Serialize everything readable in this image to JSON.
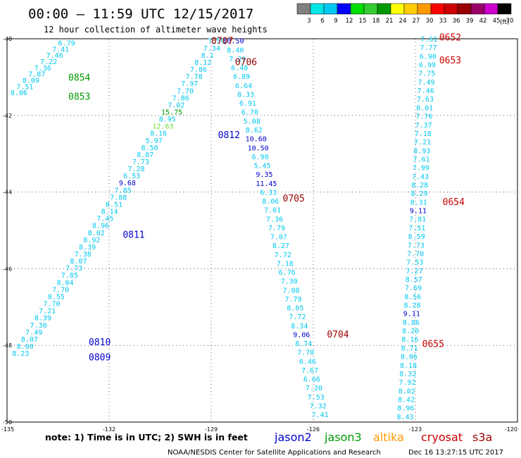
{
  "header": {
    "title": "00:00 – 11:59 UTC 12/15/2017",
    "subtitle": "12 hour collection of altimeter wave heights"
  },
  "scale": {
    "unit": "(ft)",
    "labels": [
      "3",
      "6",
      "9",
      "12",
      "15",
      "18",
      "21",
      "24",
      "27",
      "30",
      "33",
      "36",
      "39",
      "42",
      "45",
      "70"
    ],
    "colors": [
      "#808080",
      "#00e6e6",
      "#00c8f0",
      "#0000ff",
      "#00dd00",
      "#33cc33",
      "#009900",
      "#ffff00",
      "#ffcc00",
      "#ff9900",
      "#ff0000",
      "#cc0000",
      "#990000",
      "#990066",
      "#cc00cc",
      "#000000"
    ]
  },
  "axes": {
    "lon_labels": [
      "-135",
      "-132",
      "-129",
      "-126",
      "-123",
      "-120"
    ],
    "lat_labels": [
      "-40",
      "-42",
      "-44",
      "-46",
      "-48",
      "-50"
    ]
  },
  "footer": {
    "note": "note: 1) Time is in UTC; 2) SWH is in feet",
    "credit": "NOAA/NESDIS Center for Satellite Applications and Research",
    "timestamp": "Dec 16 13:27:15 UTC 2017"
  },
  "legend": [
    {
      "name": "jason2",
      "color": "#0000cc"
    },
    {
      "name": "jason3",
      "color": "#009900"
    },
    {
      "name": "altika",
      "color": "#ff9900"
    },
    {
      "name": "cryosat",
      "color": "#cc0000"
    },
    {
      "name": "s3a",
      "color": "#990000"
    }
  ],
  "pass_labels": [
    {
      "text": "0854",
      "lon": -133.2,
      "lat": -41.0,
      "color": "#009900"
    },
    {
      "text": "0853",
      "lon": -133.2,
      "lat": -41.5,
      "color": "#009900"
    },
    {
      "text": "0810",
      "lon": -132.6,
      "lat": -47.9,
      "color": "#0000cc"
    },
    {
      "text": "0809",
      "lon": -132.6,
      "lat": -48.3,
      "color": "#0000cc"
    },
    {
      "text": "0811",
      "lon": -131.6,
      "lat": -45.1,
      "color": "#0000cc"
    },
    {
      "text": "0812",
      "lon": -128.8,
      "lat": -42.5,
      "color": "#0000cc"
    },
    {
      "text": "0707",
      "lon": -129.0,
      "lat": -40.05,
      "color": "#990000"
    },
    {
      "text": "0706",
      "lon": -128.3,
      "lat": -40.6,
      "color": "#990000"
    },
    {
      "text": "0705",
      "lon": -126.9,
      "lat": -44.15,
      "color": "#990000"
    },
    {
      "text": "0704",
      "lon": -125.6,
      "lat": -47.7,
      "color": "#990000"
    },
    {
      "text": "0652",
      "lon": -122.3,
      "lat": -39.95,
      "color": "#cc0000"
    },
    {
      "text": "0653",
      "lon": -122.3,
      "lat": -40.55,
      "color": "#cc0000"
    },
    {
      "text": "0654",
      "lon": -122.2,
      "lat": -44.25,
      "color": "#cc0000"
    },
    {
      "text": "0655",
      "lon": -122.8,
      "lat": -47.95,
      "color": "#cc0000"
    }
  ],
  "tracks": [
    {
      "lon0": -133.25,
      "lat0": -40.1,
      "lon1": -134.65,
      "lat1": -41.4,
      "values": [
        "6.79",
        "7.41",
        "7.46",
        "7.22",
        "7.36",
        "7.87",
        "8.09",
        "7.51",
        "8.06"
      ]
    },
    {
      "lon0": -128.85,
      "lat0": -40.05,
      "lon1": -134.6,
      "lat1": -48.2,
      "values": [
        "7.59",
        "7.34",
        "8.1",
        "8.12",
        "7.86",
        "7.78",
        "7.97",
        "7.70",
        "7.86",
        "7.02",
        "15.75",
        "8.95",
        "12.63",
        "8.16",
        "5.97",
        "8.50",
        "8.07",
        "7.73",
        "7.28",
        "6.53",
        "9.68",
        "7.85",
        "7.88",
        "8.51",
        "8.14",
        "7.45",
        "8.96",
        "8.02",
        "8.92",
        "8.39",
        "7.38",
        "8.07",
        "7.73",
        "7.85",
        "8.04",
        "7.70",
        "8.55",
        "7.70",
        "7.21",
        "8.39",
        "7.30",
        "7.49",
        "8.07",
        "8.60",
        "8.23"
      ]
    },
    {
      "lon0": -128.35,
      "lat0": -40.05,
      "lon1": -125.8,
      "lat1": -49.8,
      "values": [
        "10.50",
        "8.40",
        "7.29",
        "6.48",
        "6.89",
        "6.64",
        "8.33",
        "6.91",
        "6.70",
        "5.08",
        "8.62",
        "10.60",
        "10.50",
        "6.90",
        "5.45",
        "9.35",
        "11.45",
        "6.33",
        "8.06",
        "7.61",
        "7.36",
        "7.79",
        "7.07",
        "8.27",
        "7.72",
        "7.18",
        "6.76",
        "7.30",
        "7.08",
        "7.79",
        "8.05",
        "7.72",
        "8.34",
        "9.06",
        "8.74",
        "7.70",
        "6.46",
        "7.67",
        "6.66",
        "7.20",
        "7.53",
        "7.32",
        "7.41"
      ]
    },
    {
      "lon0": -122.6,
      "lat0": -40.0,
      "lon1": -123.3,
      "lat1": -49.85,
      "values": [
        "7.61",
        "7.77",
        "6.90",
        "6.99",
        "7.75",
        "7.49",
        "7.46",
        "7.63",
        "8.01",
        "7.76",
        "7.37",
        "7.18",
        "7.21",
        "8.93",
        "7.61",
        "7.99",
        "7.43",
        "8.28",
        "8.29",
        "8.31",
        "9.11",
        "7.81",
        "7.51",
        "8.59",
        "7.73",
        "7.70",
        "7.53",
        "7.27",
        "8.57",
        "7.69",
        "8.56",
        "8.28",
        "9.11",
        "8.86",
        "8.20",
        "8.16",
        "8.71",
        "8.06",
        "8.18",
        "8.32",
        "7.92",
        "8.02",
        "8.42",
        "8.96",
        "8.43"
      ]
    }
  ]
}
